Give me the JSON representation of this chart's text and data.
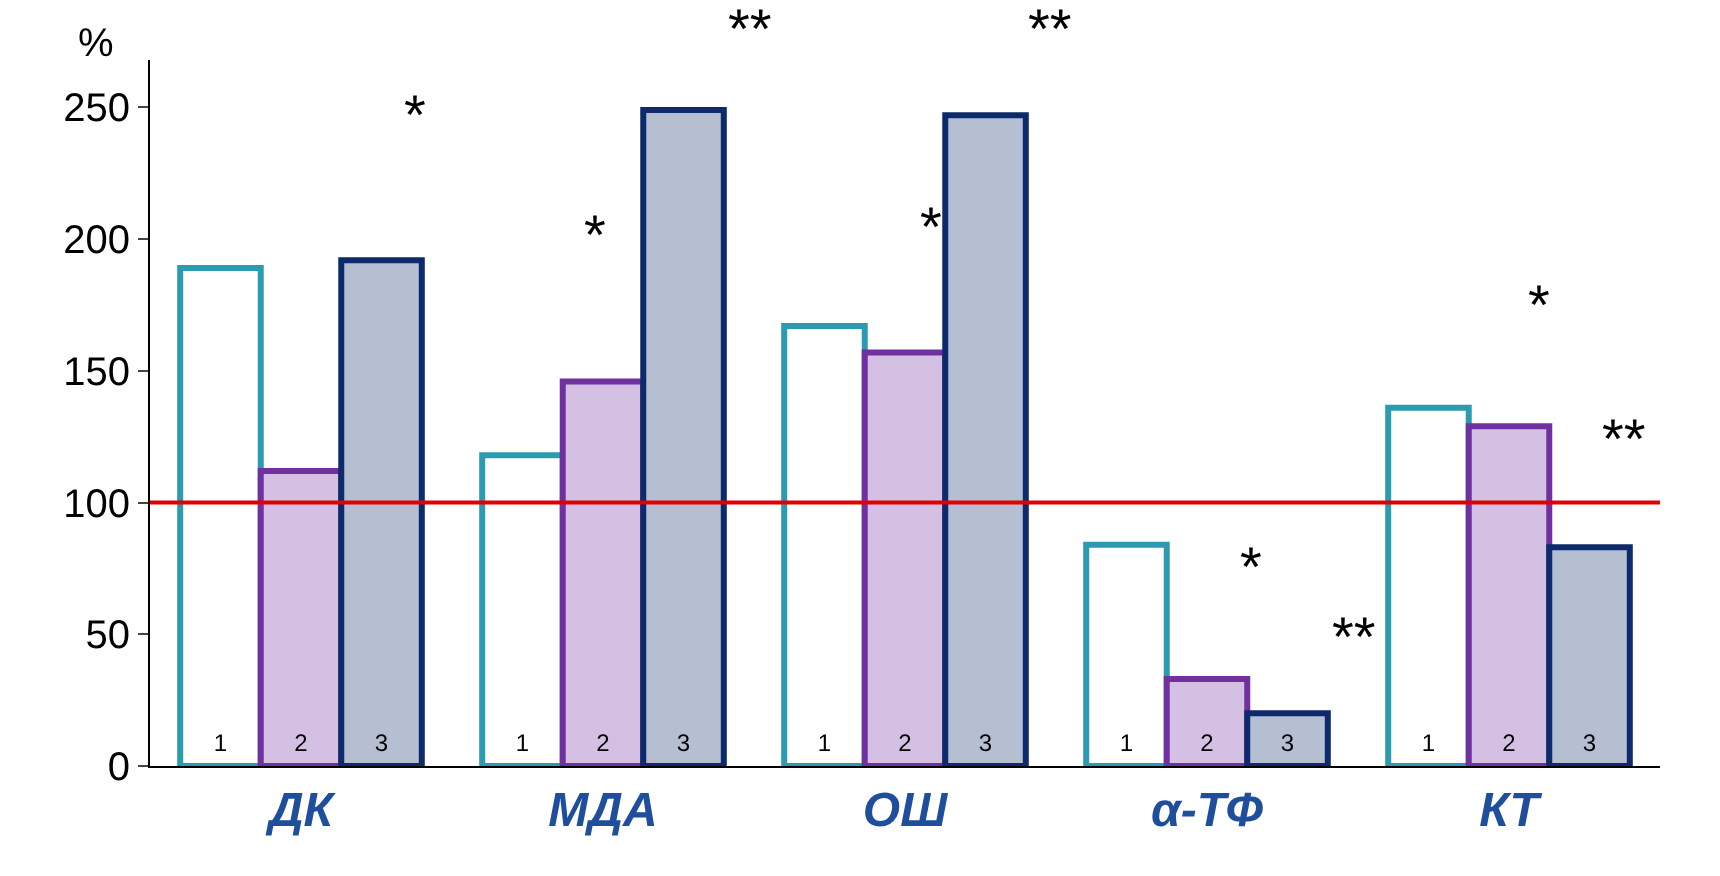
{
  "chart_data": {
    "type": "bar",
    "ylabel": "%",
    "categories": [
      "ДК",
      "МДА",
      "ОШ",
      "α-ТФ",
      "КТ"
    ],
    "series": [
      {
        "name": "1",
        "color": "#2a9bb0",
        "values": [
          189,
          118,
          167,
          84,
          136
        ]
      },
      {
        "name": "2",
        "color": "#7030a0",
        "values": [
          112,
          146,
          157,
          33,
          129
        ]
      },
      {
        "name": "3",
        "color": "#0d2a6b",
        "values": [
          192,
          249,
          247,
          20,
          83
        ]
      }
    ],
    "ylim": [
      0,
      268
    ],
    "yticks": [
      0,
      50,
      100,
      150,
      200,
      250
    ],
    "ref_lines": [
      {
        "axis": "y",
        "value": 100,
        "color": "#e00000"
      }
    ],
    "annotations": [
      "*",
      "*",
      "**",
      "*",
      "**",
      "*",
      "**",
      "*",
      "**"
    ],
    "legend": false
  }
}
